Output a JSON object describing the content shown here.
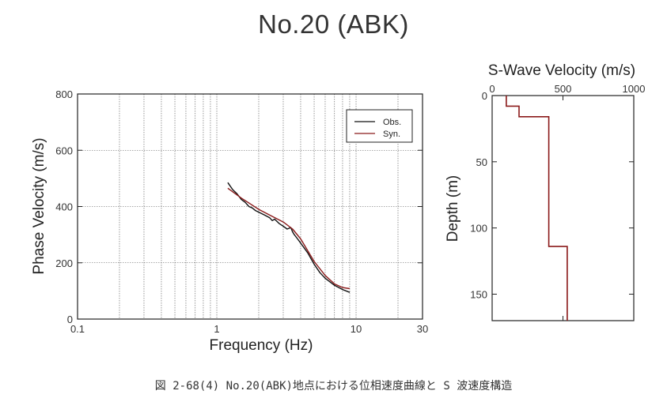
{
  "title": "No.20 (ABK)",
  "caption": "図 2-68(4) No.20(ABK)地点における位相速度曲線と S 波速度構造",
  "chart_data": [
    {
      "type": "line",
      "xscale": "log",
      "xlim": [
        0.1,
        30
      ],
      "ylim": [
        0,
        800
      ],
      "x_ticks": [
        0.1,
        1,
        10,
        30
      ],
      "x_tick_labels": [
        "0.1",
        "1",
        "10",
        "30"
      ],
      "y_ticks": [
        0,
        200,
        400,
        600,
        800
      ],
      "y_tick_labels": [
        "0",
        "200",
        "400",
        "600",
        "800"
      ],
      "xlabel": "Frequency (Hz)",
      "ylabel": "Phase Velocity (m/s)",
      "grid": true,
      "legend_position": "top-right",
      "series": [
        {
          "name": "Obs.",
          "color": "#111111",
          "x": [
            1.2,
            1.3,
            1.4,
            1.5,
            1.6,
            1.7,
            1.8,
            1.9,
            2.0,
            2.2,
            2.4,
            2.5,
            2.6,
            2.8,
            3.0,
            3.2,
            3.4,
            3.5,
            3.6,
            3.8,
            4.0,
            4.5,
            5.0,
            5.5,
            6.0,
            7.0,
            8.0,
            9.0
          ],
          "y": [
            485,
            460,
            445,
            425,
            415,
            400,
            395,
            385,
            380,
            370,
            360,
            350,
            355,
            340,
            330,
            320,
            325,
            310,
            300,
            285,
            270,
            235,
            195,
            165,
            145,
            120,
            105,
            95
          ]
        },
        {
          "name": "Syn.",
          "color": "#8b1a1a",
          "x": [
            1.2,
            1.5,
            2.0,
            2.5,
            3.0,
            3.5,
            4.0,
            5.0,
            6.0,
            7.0,
            8.0,
            9.0
          ],
          "y": [
            465,
            430,
            390,
            365,
            345,
            320,
            285,
            205,
            155,
            125,
            112,
            108
          ]
        }
      ]
    },
    {
      "type": "line",
      "title": "S-Wave Velocity (m/s)",
      "xlim": [
        0,
        1000
      ],
      "ylim": [
        0,
        170
      ],
      "y_inverted": true,
      "x_ticks": [
        0,
        500,
        1000
      ],
      "x_tick_labels": [
        "0",
        "500",
        "1000"
      ],
      "y_ticks": [
        0,
        50,
        100,
        150
      ],
      "y_tick_labels": [
        "0",
        "50",
        "100",
        "150"
      ],
      "ylabel": "Depth (m)",
      "grid": false,
      "series": [
        {
          "color": "#8b1a1a",
          "x": [
            100,
            100,
            190,
            190,
            400,
            400,
            530,
            530
          ],
          "y": [
            0,
            8,
            8,
            16,
            16,
            114,
            114,
            170
          ]
        }
      ]
    }
  ]
}
